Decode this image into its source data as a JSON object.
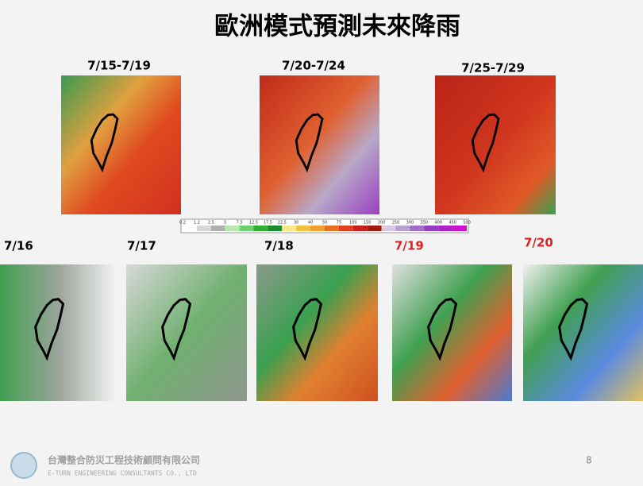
{
  "title": "歐洲模式預測未來降雨",
  "top_maps": [
    {
      "label": "7/15-7/19"
    },
    {
      "label": "7/20-7/24"
    },
    {
      "label": "7/25-7/29"
    }
  ],
  "colorbar": {
    "labels": [
      "0.2",
      "1.2",
      "2.5",
      "5",
      "7.5",
      "12.5",
      "17.5",
      "22.5",
      "30",
      "40",
      "50",
      "75",
      "100",
      "150",
      "200",
      "250",
      "300",
      "350",
      "400",
      "450",
      "500"
    ]
  },
  "daily_maps": [
    {
      "label": "7/16"
    },
    {
      "label": "7/17"
    },
    {
      "label": "7/18"
    },
    {
      "label": "7/19"
    },
    {
      "label": "7/20"
    }
  ],
  "footer": {
    "company": "台灣整合防災工程技術顧問有限公司",
    "company_en": "E-TURN ENGINEERING CONSULTANTS CO., LTD",
    "page_number": "8"
  }
}
